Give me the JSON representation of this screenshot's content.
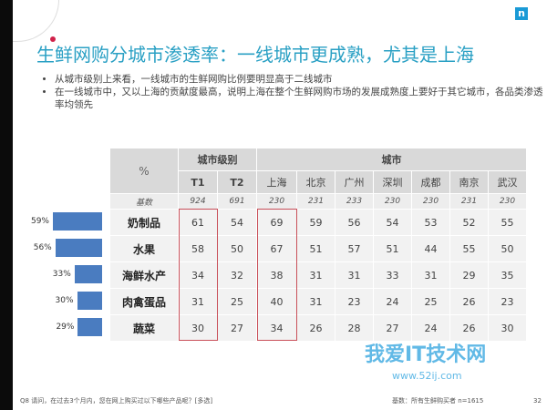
{
  "title": "生鲜网购分城市渗透率：一线城市更成熟，尤其是上海",
  "bullets": [
    "从城市级别上来看，一线城市的生鲜网购比例要明显高于二线城市",
    "在一线城市中，又以上海的贡献度最高，说明上海在整个生鲜网购市场的发展成熟度上要好于其它城市，各品类渗透率均领先"
  ],
  "logo": "n",
  "table": {
    "corner": "%",
    "group_tier": "城市级别",
    "group_city": "城市",
    "columns": [
      "T1",
      "T2",
      "上海",
      "北京",
      "广州",
      "深圳",
      "成都",
      "南京",
      "武汉"
    ],
    "base_label": "基数",
    "base": [
      "924",
      "691",
      "230",
      "231",
      "233",
      "230",
      "230",
      "231",
      "230"
    ],
    "rows": [
      {
        "category": "奶制品",
        "overall": "59%",
        "overall_value": 59,
        "values": [
          "61",
          "54",
          "69",
          "59",
          "56",
          "54",
          "53",
          "52",
          "55"
        ]
      },
      {
        "category": "水果",
        "overall": "56%",
        "overall_value": 56,
        "values": [
          "58",
          "50",
          "67",
          "51",
          "57",
          "51",
          "44",
          "55",
          "50"
        ]
      },
      {
        "category": "海鲜水产",
        "overall": "33%",
        "overall_value": 33,
        "values": [
          "34",
          "32",
          "38",
          "31",
          "31",
          "33",
          "31",
          "29",
          "35"
        ]
      },
      {
        "category": "肉禽蛋品",
        "overall": "30%",
        "overall_value": 30,
        "values": [
          "31",
          "25",
          "40",
          "31",
          "23",
          "24",
          "25",
          "26",
          "23"
        ]
      },
      {
        "category": "蔬菜",
        "overall": "29%",
        "overall_value": 29,
        "values": [
          "30",
          "27",
          "34",
          "26",
          "28",
          "27",
          "24",
          "26",
          "30"
        ]
      }
    ]
  },
  "bar_color": "#4a7cc0",
  "highlight_color": "#c9505a",
  "footnote": "Q8 请问，在过去3个月内，您在网上购买过以下哪些产品呢？[多选]",
  "base_note": "基数：所有生鲜购买者 n=1615",
  "page_number": "32",
  "watermark": "我爱IT技术网",
  "watermark_url": "www.52ij.com"
}
